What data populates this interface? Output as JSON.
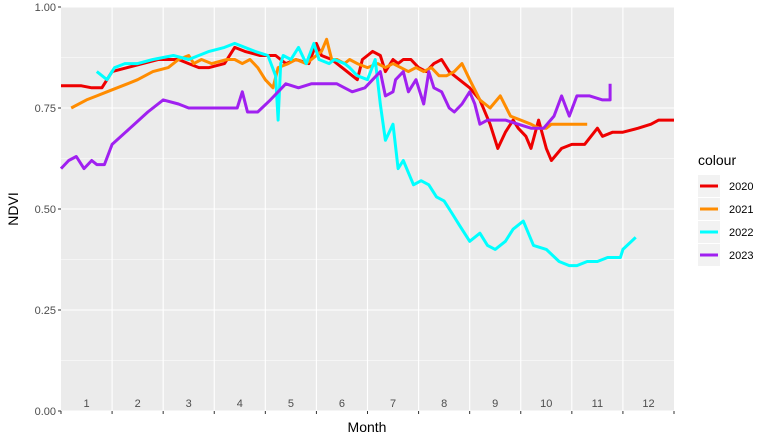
{
  "chart_data": {
    "type": "line",
    "xlabel": "Month",
    "ylabel": "NDVI",
    "xlim": [
      0.5,
      12.5
    ],
    "ylim": [
      0,
      1
    ],
    "yticks": [
      "0.00",
      "0.25",
      "0.50",
      "0.75",
      "1.00"
    ],
    "month_labels": [
      "1",
      "2",
      "3",
      "4",
      "5",
      "6",
      "7",
      "8",
      "9",
      "10",
      "11",
      "12"
    ],
    "grid": true,
    "legend_title": "colour",
    "legend_position": "right",
    "series": [
      {
        "name": "2020",
        "color": "#ee0000",
        "x": [
          0.5,
          0.9,
          1.1,
          1.3,
          1.5,
          1.8,
          2.1,
          2.4,
          2.8,
          3.0,
          3.2,
          3.4,
          3.7,
          3.9,
          4.1,
          4.4,
          4.7,
          4.9,
          5.1,
          5.35,
          5.5,
          5.6,
          5.8,
          6.0,
          6.3,
          6.4,
          6.5,
          6.6,
          6.75,
          6.85,
          7.0,
          7.1,
          7.2,
          7.35,
          7.5,
          7.65,
          7.8,
          7.95,
          8.1,
          8.3,
          8.5,
          8.7,
          8.9,
          9.05,
          9.2,
          9.35,
          9.45,
          9.6,
          9.7,
          9.85,
          10.0,
          10.1,
          10.3,
          10.5,
          10.75,
          11.0,
          11.1,
          11.3,
          11.5,
          11.8,
          12.05,
          12.2,
          12.5
        ],
        "y": [
          0.805,
          0.805,
          0.8,
          0.8,
          0.84,
          0.85,
          0.86,
          0.87,
          0.87,
          0.86,
          0.85,
          0.85,
          0.86,
          0.9,
          0.89,
          0.88,
          0.88,
          0.86,
          0.87,
          0.86,
          0.91,
          0.88,
          0.87,
          0.85,
          0.82,
          0.87,
          0.88,
          0.89,
          0.88,
          0.84,
          0.87,
          0.86,
          0.87,
          0.87,
          0.85,
          0.84,
          0.86,
          0.87,
          0.84,
          0.82,
          0.8,
          0.77,
          0.71,
          0.65,
          0.69,
          0.72,
          0.7,
          0.68,
          0.65,
          0.72,
          0.65,
          0.62,
          0.65,
          0.66,
          0.66,
          0.7,
          0.68,
          0.69,
          0.69,
          0.7,
          0.71,
          0.72,
          0.72
        ]
      },
      {
        "name": "2021",
        "color": "#ff8c00",
        "x": [
          0.7,
          1.0,
          1.2,
          1.4,
          1.6,
          1.8,
          2.0,
          2.3,
          2.6,
          2.8,
          3.0,
          3.1,
          3.25,
          3.45,
          3.75,
          3.9,
          4.05,
          4.2,
          4.35,
          4.5,
          4.65,
          4.75,
          4.95,
          5.1,
          5.3,
          5.5,
          5.6,
          5.7,
          5.8,
          5.9,
          6.05,
          6.15,
          6.3,
          6.5,
          6.7,
          6.85,
          7.0,
          7.15,
          7.3,
          7.45,
          7.6,
          7.75,
          7.9,
          8.05,
          8.2,
          8.35,
          8.5,
          8.7,
          8.9,
          9.1,
          9.3,
          9.5,
          9.7,
          9.85,
          10.0,
          10.1,
          10.3,
          10.5,
          10.65,
          10.8
        ],
        "y": [
          0.75,
          0.77,
          0.78,
          0.79,
          0.8,
          0.81,
          0.82,
          0.84,
          0.85,
          0.87,
          0.88,
          0.86,
          0.87,
          0.86,
          0.87,
          0.87,
          0.86,
          0.87,
          0.85,
          0.82,
          0.8,
          0.85,
          0.86,
          0.87,
          0.86,
          0.88,
          0.89,
          0.92,
          0.87,
          0.87,
          0.86,
          0.87,
          0.86,
          0.85,
          0.86,
          0.85,
          0.86,
          0.85,
          0.84,
          0.85,
          0.84,
          0.85,
          0.83,
          0.83,
          0.84,
          0.86,
          0.82,
          0.77,
          0.75,
          0.78,
          0.73,
          0.72,
          0.71,
          0.7,
          0.7,
          0.71,
          0.71,
          0.71,
          0.71,
          0.71
        ]
      },
      {
        "name": "2022",
        "color": "#00ffff",
        "x": [
          1.2,
          1.4,
          1.55,
          1.75,
          2.0,
          2.3,
          2.7,
          3.0,
          3.4,
          3.7,
          3.9,
          4.1,
          4.3,
          4.55,
          4.7,
          4.75,
          4.8,
          4.85,
          5.0,
          5.15,
          5.3,
          5.45,
          5.55,
          5.75,
          5.85,
          6.05,
          6.15,
          6.3,
          6.5,
          6.65,
          6.75,
          6.85,
          7.0,
          7.1,
          7.2,
          7.4,
          7.55,
          7.7,
          7.85,
          8.0,
          8.15,
          8.3,
          8.5,
          8.7,
          8.85,
          9.0,
          9.2,
          9.35,
          9.55,
          9.75,
          10.0,
          10.25,
          10.45,
          10.6,
          10.8,
          11.0,
          11.2,
          11.45,
          11.5,
          11.75
        ],
        "y": [
          0.84,
          0.82,
          0.85,
          0.86,
          0.86,
          0.87,
          0.88,
          0.87,
          0.89,
          0.9,
          0.91,
          0.9,
          0.89,
          0.88,
          0.83,
          0.72,
          0.86,
          0.88,
          0.87,
          0.9,
          0.86,
          0.91,
          0.87,
          0.86,
          0.87,
          0.86,
          0.85,
          0.83,
          0.82,
          0.87,
          0.76,
          0.67,
          0.71,
          0.6,
          0.62,
          0.56,
          0.57,
          0.56,
          0.53,
          0.52,
          0.49,
          0.46,
          0.42,
          0.44,
          0.41,
          0.4,
          0.42,
          0.45,
          0.47,
          0.41,
          0.4,
          0.37,
          0.36,
          0.36,
          0.37,
          0.37,
          0.38,
          0.38,
          0.4,
          0.43
        ]
      },
      {
        "name": "2023",
        "color": "#a020f0",
        "x": [
          0.5,
          0.65,
          0.8,
          0.95,
          1.1,
          1.2,
          1.35,
          1.5,
          1.85,
          2.2,
          2.5,
          2.8,
          3.0,
          3.3,
          3.6,
          3.85,
          3.95,
          4.05,
          4.15,
          4.35,
          4.6,
          4.9,
          5.15,
          5.4,
          5.65,
          5.9,
          6.05,
          6.2,
          6.45,
          6.6,
          6.75,
          6.85,
          7.0,
          7.05,
          7.2,
          7.3,
          7.45,
          7.6,
          7.7,
          7.8,
          7.95,
          8.1,
          8.2,
          8.35,
          8.5,
          8.6,
          8.7,
          8.85,
          9.0,
          9.2,
          9.45,
          9.7,
          9.95,
          10.15,
          10.3,
          10.45,
          10.6,
          10.85,
          11.1,
          11.25,
          11.25
        ],
        "y": [
          0.6,
          0.62,
          0.63,
          0.6,
          0.62,
          0.61,
          0.61,
          0.66,
          0.7,
          0.74,
          0.77,
          0.76,
          0.75,
          0.75,
          0.75,
          0.75,
          0.75,
          0.79,
          0.74,
          0.74,
          0.77,
          0.81,
          0.8,
          0.81,
          0.81,
          0.81,
          0.8,
          0.79,
          0.8,
          0.82,
          0.84,
          0.78,
          0.79,
          0.82,
          0.84,
          0.79,
          0.82,
          0.76,
          0.84,
          0.8,
          0.79,
          0.75,
          0.74,
          0.76,
          0.79,
          0.76,
          0.71,
          0.72,
          0.72,
          0.72,
          0.71,
          0.7,
          0.7,
          0.73,
          0.78,
          0.73,
          0.78,
          0.78,
          0.77,
          0.77,
          0.81
        ]
      }
    ]
  }
}
